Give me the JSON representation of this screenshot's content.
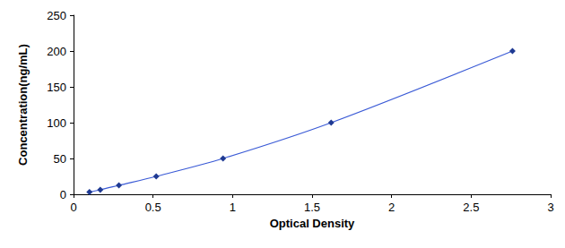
{
  "chart_data": {
    "type": "line",
    "x_label": "Optical Density",
    "y_label": "Concentration(ng/mL)",
    "x": [
      0.1,
      0.168,
      0.285,
      0.52,
      0.94,
      1.62,
      2.76
    ],
    "values": [
      3.12,
      6.25,
      12.5,
      25,
      50,
      100,
      200
    ],
    "color": "#1f3a93",
    "marker": "diamond",
    "xlim": [
      0,
      3
    ],
    "xticks": [
      0,
      0.5,
      1,
      1.5,
      2,
      2.5,
      3
    ],
    "ylim": [
      0,
      250
    ],
    "yticks": [
      0,
      50,
      100,
      150,
      200,
      250
    ],
    "grid": false
  }
}
